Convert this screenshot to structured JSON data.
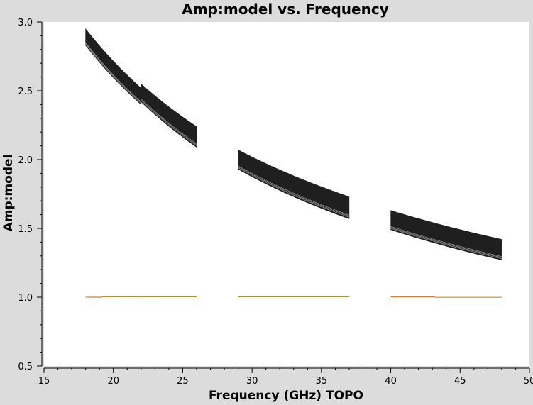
{
  "chart_data": {
    "type": "scatter",
    "title": "Amp:model vs. Frequency",
    "xlabel": "Frequency (GHz) TOPO",
    "ylabel": "Amp:model",
    "xlim": [
      15,
      50
    ],
    "ylim": [
      0.5,
      3.0
    ],
    "x_ticks": [
      "15",
      "20",
      "25",
      "30",
      "35",
      "40",
      "45",
      "50"
    ],
    "y_ticks": [
      "0.5",
      "1.0",
      "1.5",
      "2.0",
      "2.5",
      "3.0"
    ],
    "grid": false,
    "legend": "none",
    "colors": {
      "band": "#1f1f1f",
      "ones": "#c8862a",
      "plot_bg": "#ffffff",
      "frame_bg": "#dcdcdc"
    },
    "series": [
      {
        "kind": "band",
        "segments": [
          {
            "x": [
              18.0,
              22.0
            ],
            "upper": [
              2.95,
              2.52
            ],
            "lower": [
              2.83,
              2.4
            ]
          },
          {
            "x": [
              22.0,
              26.0
            ],
            "upper": [
              2.55,
              2.24
            ],
            "lower": [
              2.42,
              2.09
            ]
          },
          {
            "x": [
              29.0,
              37.0
            ],
            "upper": [
              2.07,
              1.73
            ],
            "lower": [
              1.93,
              1.57
            ]
          },
          {
            "x": [
              40.0,
              48.0
            ],
            "upper": [
              1.63,
              1.42
            ],
            "lower": [
              1.49,
              1.27
            ]
          }
        ]
      },
      {
        "kind": "flat",
        "segments": [
          {
            "x": [
              18.0,
              19.2
            ],
            "y": 1.0
          },
          {
            "x": [
              19.2,
              22.0
            ],
            "y": 1.003
          },
          {
            "x": [
              22.0,
              26.0
            ],
            "y": 1.003
          },
          {
            "x": [
              29.0,
              37.0
            ],
            "y": 1.003
          },
          {
            "x": [
              40.0,
              43.2
            ],
            "y": 1.002
          },
          {
            "x": [
              43.2,
              48.0
            ],
            "y": 0.999
          }
        ]
      }
    ]
  }
}
